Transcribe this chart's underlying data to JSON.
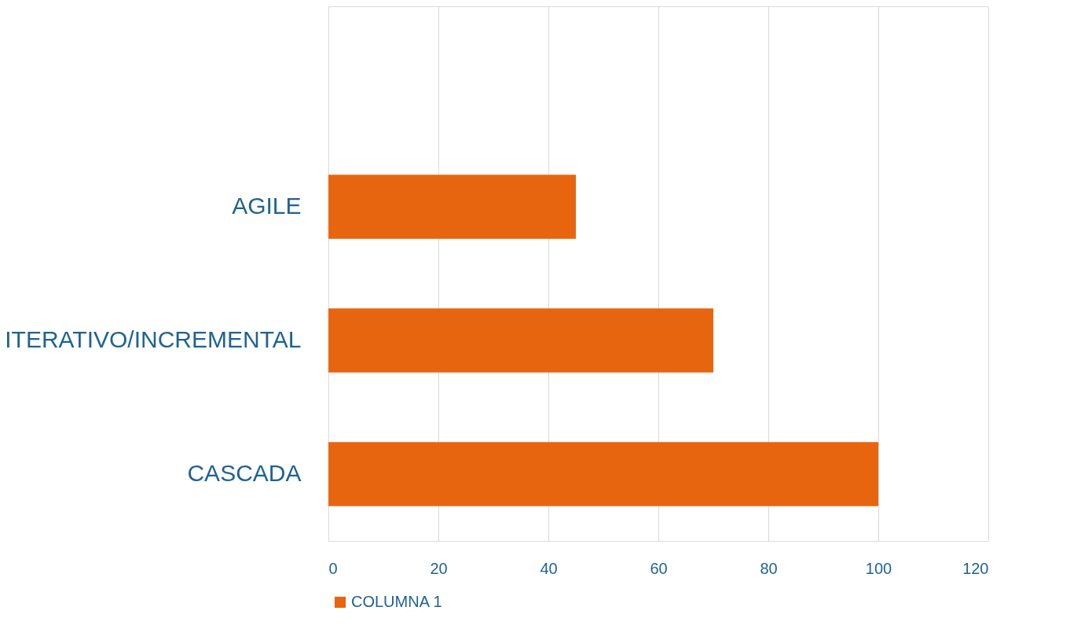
{
  "chart_data": {
    "type": "bar",
    "orientation": "horizontal",
    "categories": [
      null,
      "AGILE",
      "ITERATIVO/INCREMENTAL",
      "CASCADA"
    ],
    "series": [
      {
        "name": "COLUMNA 1",
        "color": "#e8650f",
        "values": [
          null,
          45,
          70,
          100
        ]
      }
    ],
    "xlim": [
      0,
      120
    ],
    "xticks": [
      0,
      20,
      40,
      60,
      80,
      100,
      120
    ],
    "grid": "x",
    "legend": "bottom"
  }
}
